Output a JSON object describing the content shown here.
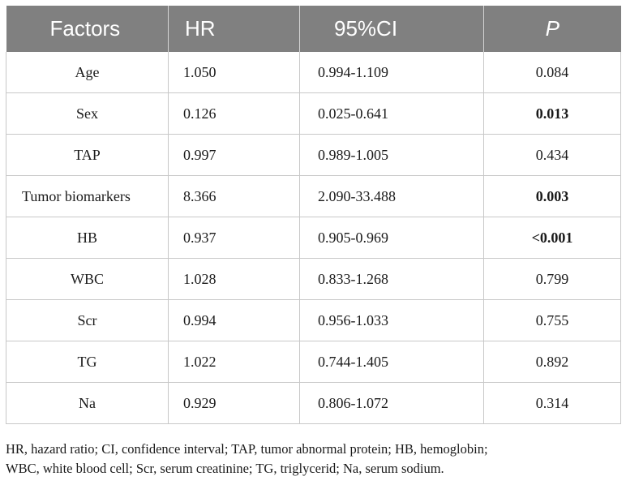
{
  "header": {
    "factors": "Factors",
    "hr": "HR",
    "ci": "95%CI",
    "p": "P"
  },
  "rows": [
    {
      "factor": "Age",
      "hr": "1.050",
      "ci": "0.994-1.109",
      "p": "0.084",
      "bold": false
    },
    {
      "factor": "Sex",
      "hr": "0.126",
      "ci": "0.025-0.641",
      "p": "0.013",
      "bold": true
    },
    {
      "factor": "TAP",
      "hr": "0.997",
      "ci": "0.989-1.005",
      "p": "0.434",
      "bold": false
    },
    {
      "factor": "Tumor biomarkers",
      "hr": "8.366",
      "ci": "2.090-33.488",
      "p": "0.003",
      "bold": true
    },
    {
      "factor": "HB",
      "hr": "0.937",
      "ci": "0.905-0.969",
      "p": "<0.001",
      "bold": true
    },
    {
      "factor": "WBC",
      "hr": "1.028",
      "ci": "0.833-1.268",
      "p": "0.799",
      "bold": false
    },
    {
      "factor": "Scr",
      "hr": "0.994",
      "ci": "0.956-1.033",
      "p": "0.755",
      "bold": false
    },
    {
      "factor": "TG",
      "hr": "1.022",
      "ci": "0.744-1.405",
      "p": "0.892",
      "bold": false
    },
    {
      "factor": "Na",
      "hr": "0.929",
      "ci": "0.806-1.072",
      "p": "0.314",
      "bold": false
    }
  ],
  "footnote": {
    "line1": "HR, hazard ratio; CI, confidence interval; TAP, tumor abnormal protein; HB, hemoglobin;",
    "line2": "WBC, white blood cell; Scr, serum creatinine; TG, triglycerid; Na, serum sodium."
  }
}
